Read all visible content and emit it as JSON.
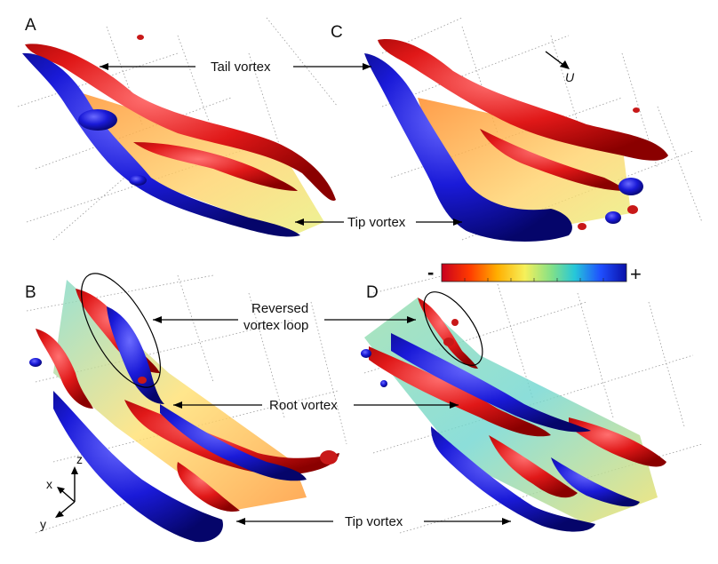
{
  "panels": {
    "a": "A",
    "b": "B",
    "c": "C",
    "d": "D"
  },
  "annotations": {
    "tail_vortex": "Tail vortex",
    "tip_vortex_top": "Tip vortex",
    "reversed_vortex_loop_line1": "Reversed",
    "reversed_vortex_loop_line2": "vortex loop",
    "root_vortex": "Root vortex",
    "tip_vortex_bottom": "Tip vortex"
  },
  "flow_label": "U",
  "colorbar": {
    "minus_label": "-",
    "plus_label": "+",
    "colors": [
      "#c8001e",
      "#ff3a00",
      "#ffae00",
      "#f6f05a",
      "#7fe08a",
      "#26c7d9",
      "#1f4fff",
      "#0a10a8"
    ]
  },
  "axes_triad": {
    "x": "x",
    "y": "y",
    "z": "z"
  },
  "colors": {
    "negative_vortex": "#d01515",
    "positive_vortex": "#1414c8",
    "wake_sheet_warm": "#f6a64a",
    "wake_sheet_cool": "#6fd6c8"
  }
}
